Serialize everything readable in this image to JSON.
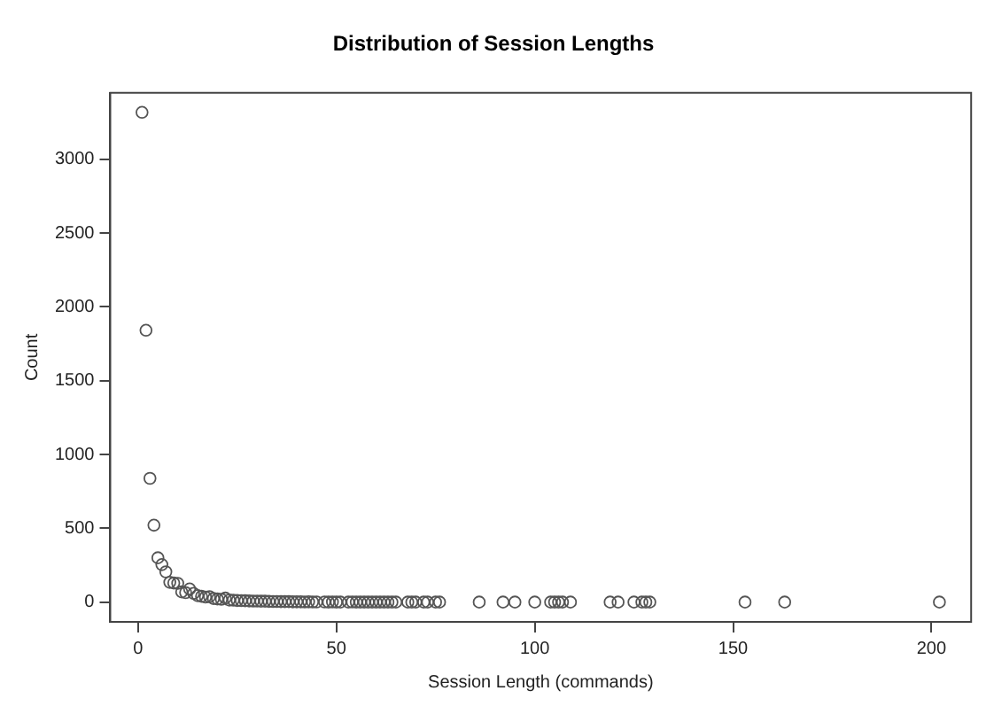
{
  "chart_data": {
    "type": "scatter",
    "title": "Distribution of Session Lengths",
    "xlabel": "Session Length (commands)",
    "ylabel": "Count",
    "x": [
      1,
      2,
      3,
      4,
      5,
      6,
      7,
      8,
      9,
      10,
      11,
      12,
      13,
      14,
      15,
      16,
      17,
      18,
      19,
      20,
      21,
      22,
      23,
      24,
      25,
      26,
      27,
      28,
      29,
      30,
      31,
      32,
      33,
      34,
      35,
      36,
      37,
      38,
      39,
      40,
      41,
      42,
      43,
      44,
      45,
      47,
      48,
      49,
      50,
      51,
      53,
      54,
      55,
      56,
      57,
      58,
      59,
      60,
      61,
      62,
      63,
      64,
      65,
      68,
      69,
      70,
      72,
      73,
      75,
      76,
      86,
      92,
      95,
      100,
      104,
      105,
      106,
      107,
      109,
      119,
      121,
      125,
      127,
      128,
      129,
      153,
      163,
      202
    ],
    "values": [
      3318,
      1842,
      839,
      522,
      301,
      255,
      206,
      135,
      130,
      128,
      70,
      65,
      90,
      60,
      45,
      40,
      35,
      38,
      25,
      22,
      20,
      28,
      15,
      14,
      12,
      11,
      10,
      9,
      8,
      8,
      7,
      7,
      6,
      5,
      5,
      4,
      4,
      4,
      3,
      3,
      3,
      2,
      3,
      2,
      2,
      2,
      1,
      2,
      1,
      1,
      1,
      2,
      1,
      1,
      1,
      1,
      1,
      1,
      1,
      1,
      1,
      1,
      1,
      1,
      1,
      1,
      1,
      1,
      1,
      1,
      1,
      1,
      1,
      1,
      1,
      1,
      1,
      1,
      1,
      1,
      1,
      1,
      1,
      1,
      1,
      1,
      1,
      1
    ],
    "color": "#555555",
    "marker": "circle",
    "grid": false,
    "legend": false,
    "xlim": [
      -7,
      210
    ],
    "xticks": [
      0,
      50,
      100,
      150,
      200
    ],
    "ylim": [
      -133,
      3450
    ],
    "yticks": [
      0,
      500,
      1000,
      1500,
      2000,
      2500,
      3000
    ]
  }
}
